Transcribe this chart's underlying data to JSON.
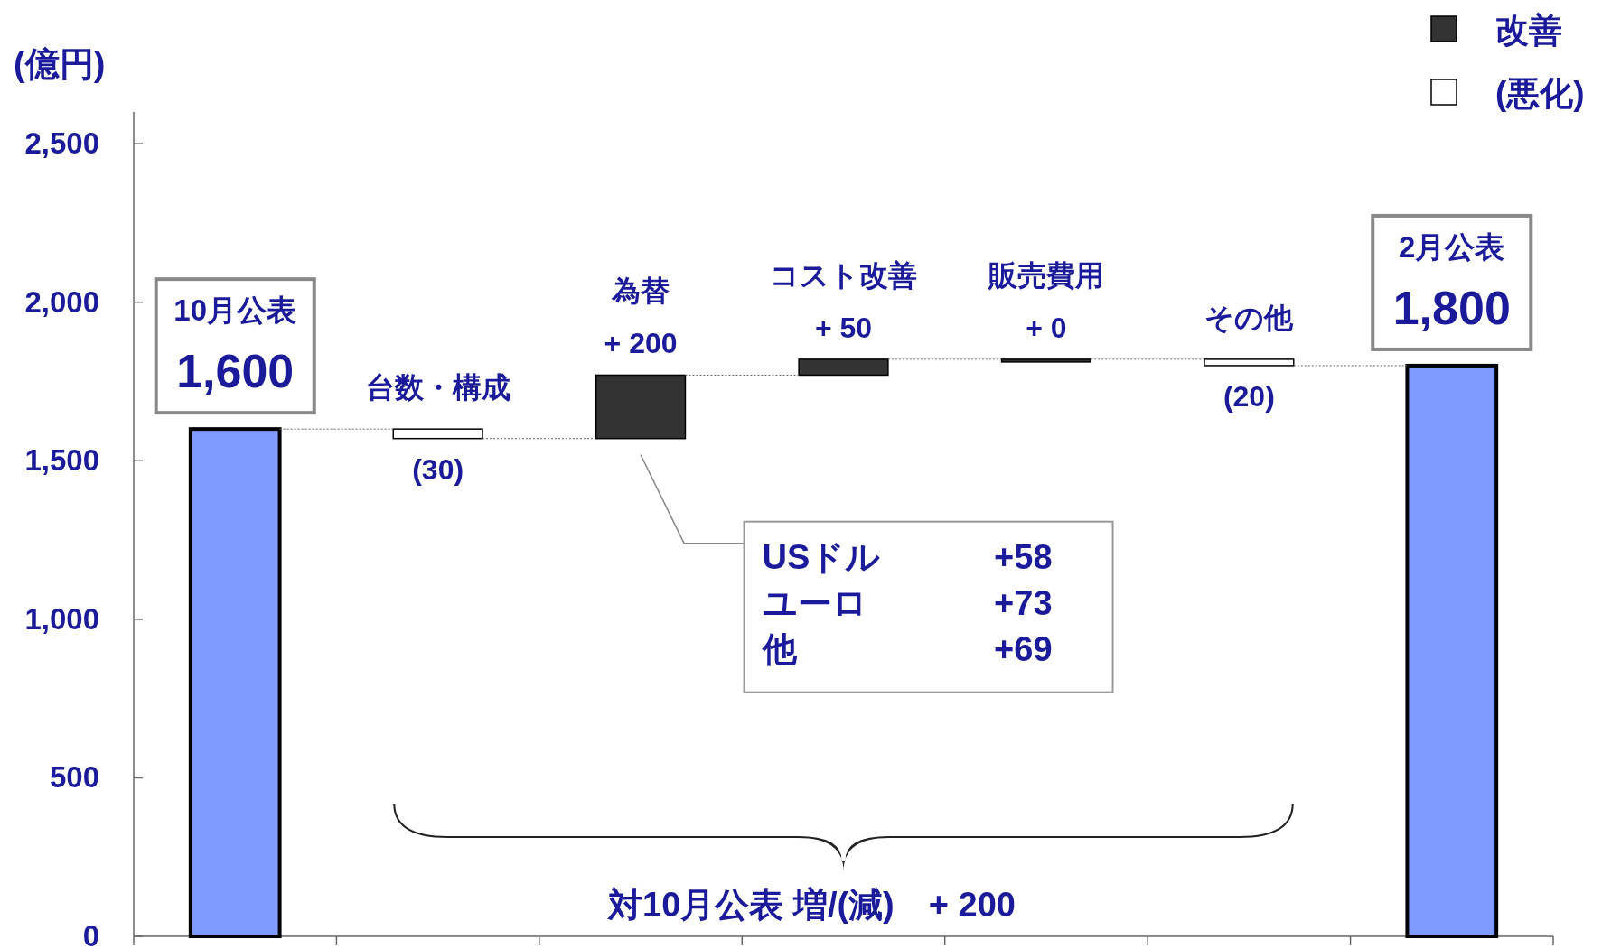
{
  "chart_data": {
    "type": "bar",
    "ylabel": "(億円)",
    "categories": [
      "10月公表",
      "台数・構成",
      "為替",
      "コスト改善",
      "販売費用",
      "その他",
      "2月公表"
    ],
    "series": [
      {
        "color": "#7f9bff",
        "values": [
          1600,
          null,
          null,
          null,
          null,
          null,
          1800
        ],
        "base": [
          0,
          null,
          null,
          null,
          null,
          null,
          0
        ],
        "value_labels": [
          "1,600",
          null,
          null,
          null,
          null,
          null,
          "1,800"
        ]
      },
      {
        "name": "改善",
        "color": "#333333",
        "values": [
          null,
          null,
          200,
          50,
          0,
          null,
          null
        ],
        "base": [
          null,
          null,
          1570,
          1770,
          1820,
          null,
          null
        ],
        "value_labels": [
          null,
          null,
          "+ 200",
          "+ 50",
          "+ 0",
          null,
          null
        ]
      },
      {
        "name": "(悪化)",
        "color": "#ffffff",
        "values": [
          null,
          -30,
          null,
          null,
          null,
          -20,
          null
        ],
        "base": [
          null,
          1600,
          null,
          null,
          null,
          1820,
          null
        ],
        "value_labels": [
          null,
          "(30)",
          null,
          null,
          null,
          "(20)",
          null
        ]
      }
    ],
    "ylim": [
      0,
      2600
    ],
    "yticks": [
      {
        "value": 0,
        "label": "0"
      },
      {
        "value": 500,
        "label": "500"
      },
      {
        "value": 1000,
        "label": "1,000"
      },
      {
        "value": 1500,
        "label": "1,500"
      },
      {
        "value": 2000,
        "label": "2,000"
      },
      {
        "value": 2500,
        "label": "2,500"
      }
    ],
    "legend": "top right",
    "annotations": [
      "USドル +58",
      "ユーロ +73",
      "他 +69",
      "対10月公表 増/(減)　+ 200"
    ]
  }
}
